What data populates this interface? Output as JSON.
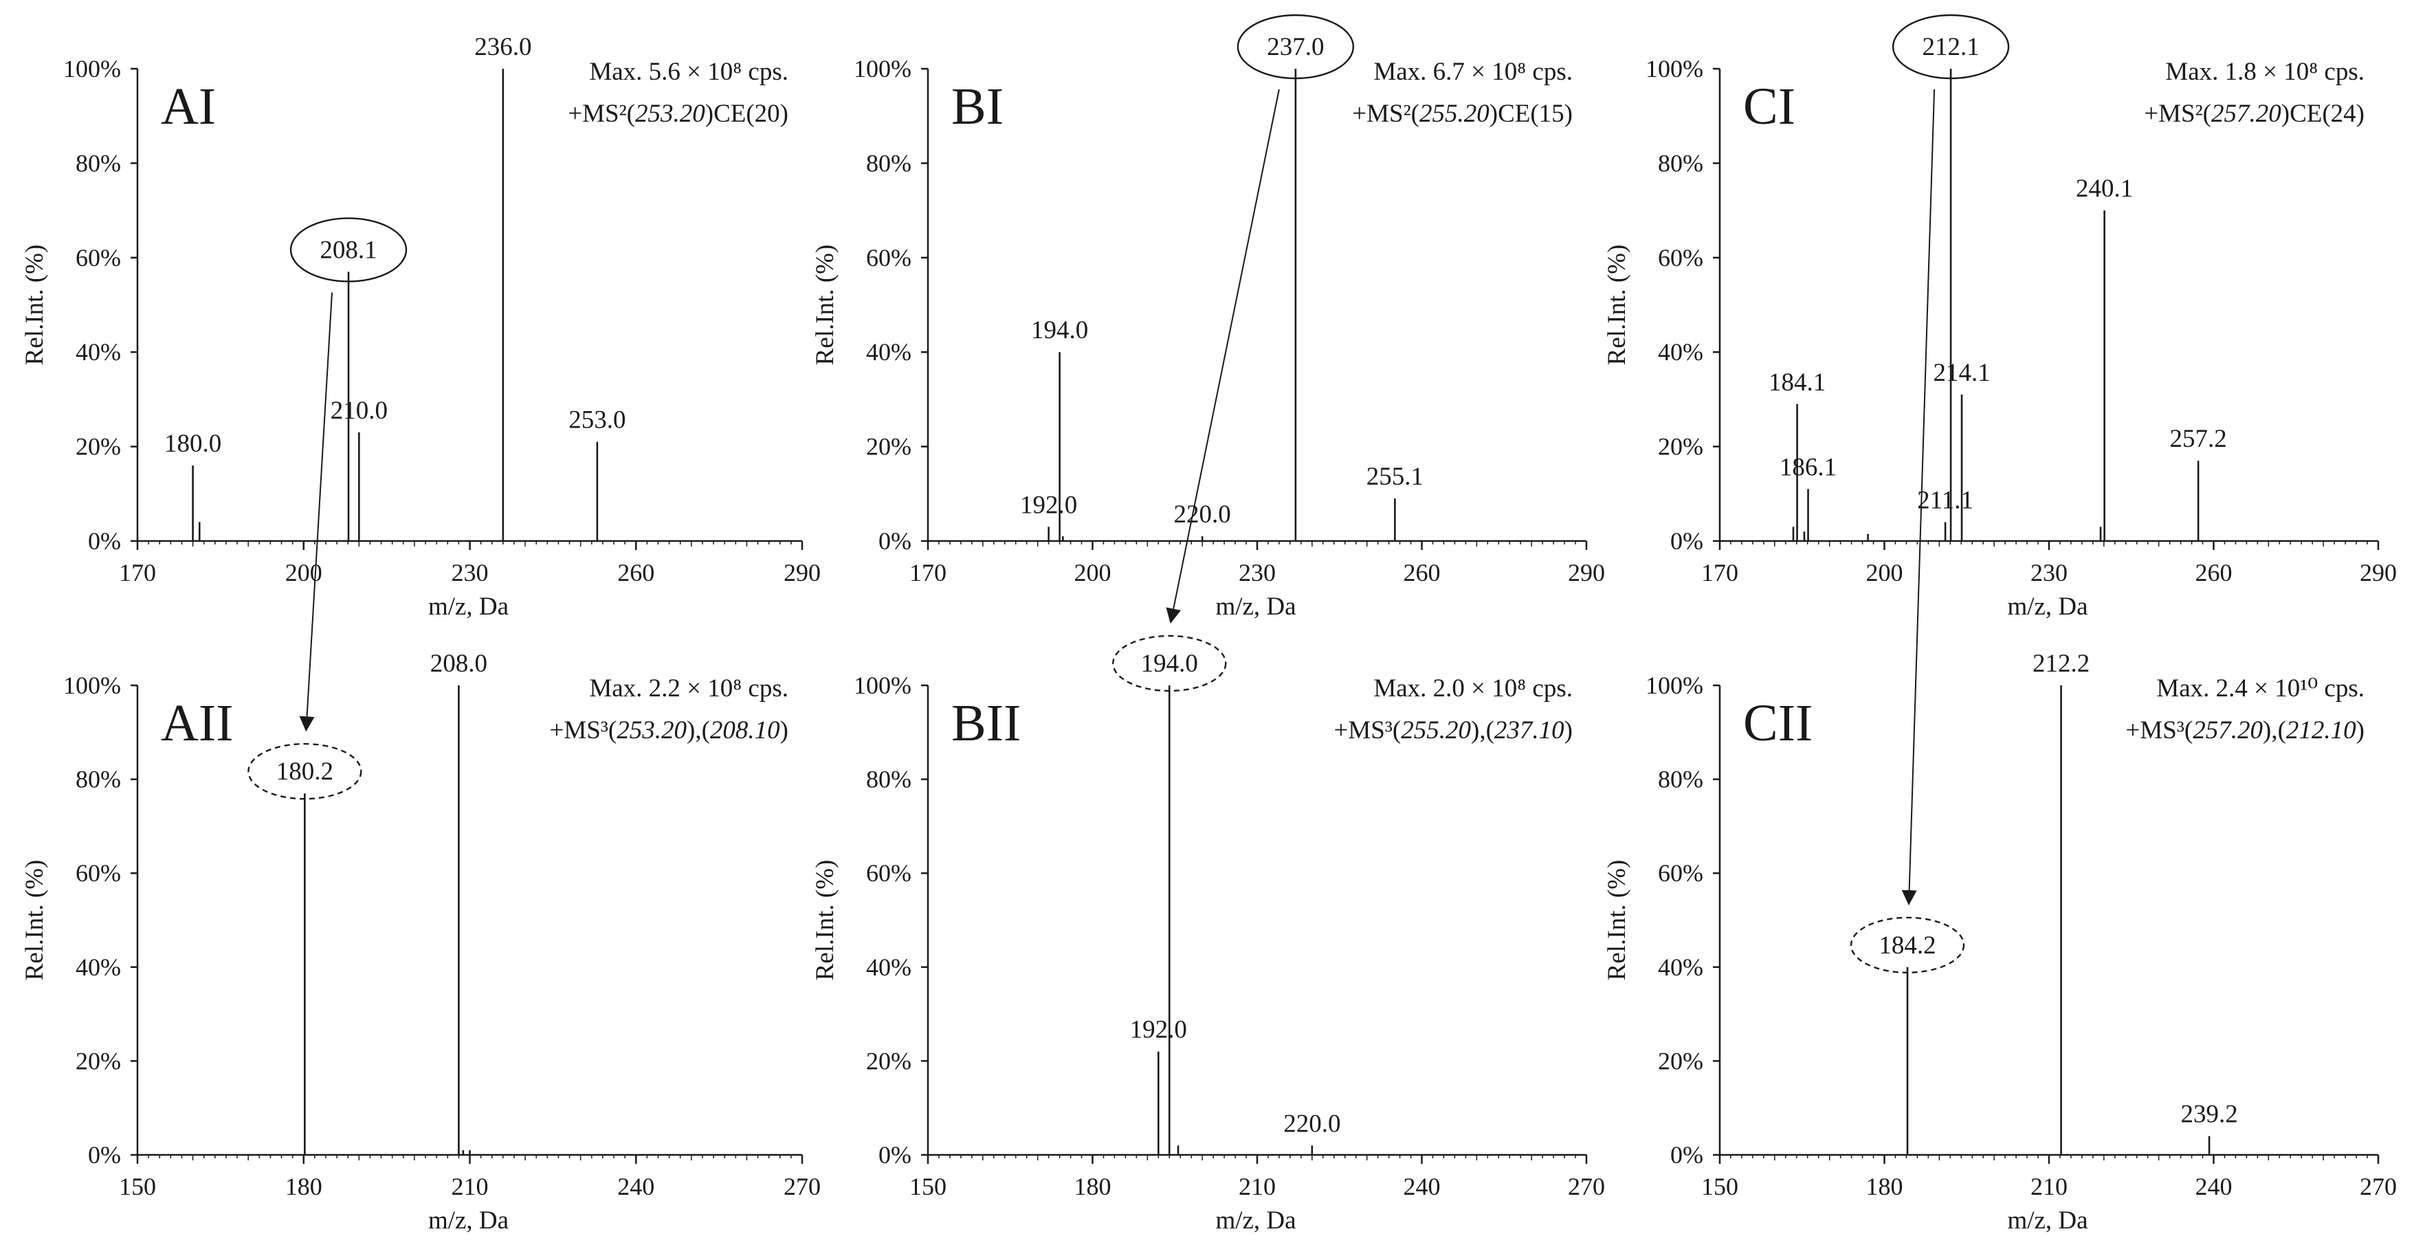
{
  "chart_data": [
    {
      "id": "AI",
      "type": "bar",
      "panel_label": "AI",
      "info_line1": "Max. 5.6 × 10⁸ cps.",
      "info_line2": {
        "prefix": "+MS²(",
        "precursor": "253.20",
        "suffix": ")CE(20)"
      },
      "xlabel": "m/z, Da",
      "ylabel": "Rel.Int. (%)",
      "xlim": [
        170,
        290
      ],
      "ylim": [
        0,
        100
      ],
      "xticks": [
        170,
        200,
        230,
        260,
        290
      ],
      "yticks": [
        0,
        20,
        40,
        60,
        80,
        100
      ],
      "ytick_labels": [
        "0%",
        "20%",
        "40%",
        "60%",
        "80%",
        "100%"
      ],
      "peaks": [
        {
          "x": 180.0,
          "y": 16,
          "label": "180.0"
        },
        {
          "x": 181.2,
          "y": 4
        },
        {
          "x": 208.1,
          "y": 57,
          "label": "208.1",
          "circled": "solid"
        },
        {
          "x": 210.0,
          "y": 23,
          "label": "210.0"
        },
        {
          "x": 236.0,
          "y": 100,
          "label": "236.0"
        },
        {
          "x": 253.0,
          "y": 21,
          "label": "253.0"
        }
      ]
    },
    {
      "id": "BI",
      "type": "bar",
      "panel_label": "BI",
      "info_line1": "Max. 6.7 × 10⁸ cps.",
      "info_line2": {
        "prefix": "+MS²(",
        "precursor": "255.20",
        "suffix": ")CE(15)"
      },
      "xlabel": "m/z, Da",
      "ylabel": "Rel.Int. (%)",
      "xlim": [
        170,
        290
      ],
      "ylim": [
        0,
        100
      ],
      "xticks": [
        170,
        200,
        230,
        260,
        290
      ],
      "yticks": [
        0,
        20,
        40,
        60,
        80,
        100
      ],
      "ytick_labels": [
        "0%",
        "20%",
        "40%",
        "60%",
        "80%",
        "100%"
      ],
      "peaks": [
        {
          "x": 192.0,
          "y": 3,
          "label": "192.0"
        },
        {
          "x": 194.0,
          "y": 40,
          "label": "194.0"
        },
        {
          "x": 194.6,
          "y": 1
        },
        {
          "x": 220.0,
          "y": 1,
          "label": "220.0"
        },
        {
          "x": 237.0,
          "y": 100,
          "label": "237.0",
          "circled": "solid"
        },
        {
          "x": 255.1,
          "y": 9,
          "label": "255.1"
        }
      ]
    },
    {
      "id": "CI",
      "type": "bar",
      "panel_label": "CI",
      "info_line1": "Max. 1.8 × 10⁸ cps.",
      "info_line2": {
        "prefix": "+MS²(",
        "precursor": "257.20",
        "suffix": ")CE(24)"
      },
      "xlabel": "m/z, Da",
      "ylabel": "Rel.Int. (%)",
      "xlim": [
        170,
        290
      ],
      "ylim": [
        0,
        100
      ],
      "xticks": [
        170,
        200,
        230,
        260,
        290
      ],
      "yticks": [
        0,
        20,
        40,
        60,
        80,
        100
      ],
      "ytick_labels": [
        "0%",
        "20%",
        "40%",
        "60%",
        "80%",
        "100%"
      ],
      "peaks": [
        {
          "x": 183.4,
          "y": 3
        },
        {
          "x": 184.1,
          "y": 29,
          "label": "184.1"
        },
        {
          "x": 185.4,
          "y": 2
        },
        {
          "x": 186.1,
          "y": 11,
          "label": "186.1"
        },
        {
          "x": 197.0,
          "y": 1.5
        },
        {
          "x": 211.1,
          "y": 4,
          "label": "211.1"
        },
        {
          "x": 212.1,
          "y": 100,
          "label": "212.1",
          "circled": "solid"
        },
        {
          "x": 214.1,
          "y": 31,
          "label": "214.1"
        },
        {
          "x": 239.4,
          "y": 3
        },
        {
          "x": 240.1,
          "y": 70,
          "label": "240.1"
        },
        {
          "x": 257.2,
          "y": 17,
          "label": "257.2"
        }
      ]
    },
    {
      "id": "AII",
      "type": "bar",
      "panel_label": "AII",
      "info_line1": "Max. 2.2 × 10⁸ cps.",
      "info_line2": {
        "prefix": "+MS³(",
        "precursor": "253.20",
        "mid": "),(",
        "product": "208.10",
        "suffix": ")"
      },
      "xlabel": "m/z, Da",
      "ylabel": "Rel.Int. (%)",
      "xlim": [
        150,
        270
      ],
      "ylim": [
        0,
        100
      ],
      "xticks": [
        150,
        180,
        210,
        240,
        270
      ],
      "yticks": [
        0,
        20,
        40,
        60,
        80,
        100
      ],
      "ytick_labels": [
        "0%",
        "20%",
        "40%",
        "60%",
        "80%",
        "100%"
      ],
      "peaks": [
        {
          "x": 180.2,
          "y": 77,
          "label": "180.2",
          "circled": "dashed"
        },
        {
          "x": 208.0,
          "y": 100,
          "label": "208.0"
        },
        {
          "x": 208.8,
          "y": 1
        },
        {
          "x": 210.0,
          "y": 1
        }
      ]
    },
    {
      "id": "BII",
      "type": "bar",
      "panel_label": "BII",
      "info_line1": "Max. 2.0 × 10⁸ cps.",
      "info_line2": {
        "prefix": "+MS³(",
        "precursor": "255.20",
        "mid": "),(",
        "product": "237.10",
        "suffix": ")"
      },
      "xlabel": "m/z, Da",
      "ylabel": "Rel.Int. (%)",
      "xlim": [
        150,
        270
      ],
      "ylim": [
        0,
        100
      ],
      "xticks": [
        150,
        180,
        210,
        240,
        270
      ],
      "yticks": [
        0,
        20,
        40,
        60,
        80,
        100
      ],
      "ytick_labels": [
        "0%",
        "20%",
        "40%",
        "60%",
        "80%",
        "100%"
      ],
      "peaks": [
        {
          "x": 192.0,
          "y": 22,
          "label": "192.0"
        },
        {
          "x": 194.0,
          "y": 100,
          "label": "194.0",
          "circled": "dashed"
        },
        {
          "x": 195.6,
          "y": 2
        },
        {
          "x": 220.0,
          "y": 2,
          "label": "220.0"
        }
      ]
    },
    {
      "id": "CII",
      "type": "bar",
      "panel_label": "CII",
      "info_line1": "Max. 2.4 × 10¹⁰ cps.",
      "info_line2": {
        "prefix": "+MS³(",
        "precursor": "257.20",
        "mid": "),(",
        "product": "212.10",
        "suffix": ")"
      },
      "xlabel": "m/z, Da",
      "ylabel": "Rel.Int. (%)",
      "xlim": [
        150,
        270
      ],
      "ylim": [
        0,
        100
      ],
      "xticks": [
        150,
        180,
        210,
        240,
        270
      ],
      "yticks": [
        0,
        20,
        40,
        60,
        80,
        100
      ],
      "ytick_labels": [
        "0%",
        "20%",
        "40%",
        "60%",
        "80%",
        "100%"
      ],
      "peaks": [
        {
          "x": 184.2,
          "y": 40,
          "label": "184.2",
          "circled": "dashed"
        },
        {
          "x": 212.2,
          "y": 100,
          "label": "212.2"
        },
        {
          "x": 239.2,
          "y": 4,
          "label": "239.2"
        }
      ]
    }
  ],
  "arrows": [
    {
      "from": "AI",
      "from_x": 208.1,
      "to": "AII",
      "to_x": 180.2
    },
    {
      "from": "BI",
      "from_x": 237.0,
      "to": "BII",
      "to_x": 194.0
    },
    {
      "from": "CI",
      "from_x": 212.1,
      "to": "CII",
      "to_x": 184.2
    }
  ],
  "colors": {
    "ink": "#1a1a1a",
    "background": "#ffffff"
  }
}
